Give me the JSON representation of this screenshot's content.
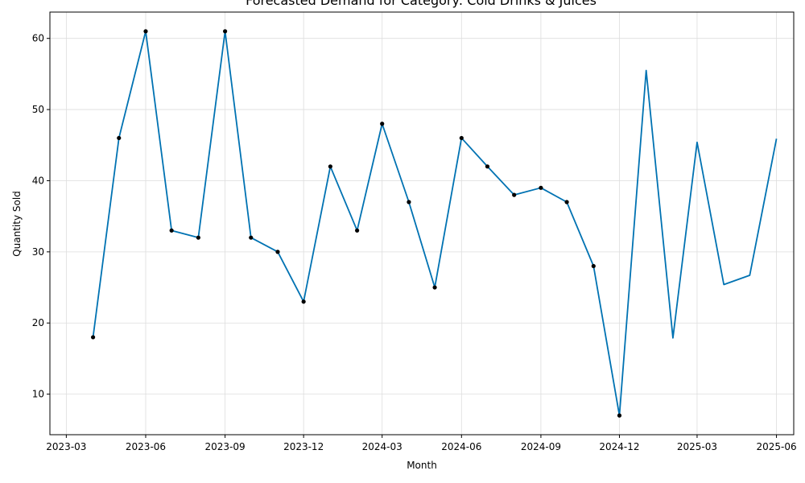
{
  "chart_data": {
    "type": "line",
    "title": "Forecasted Demand for Category: Cold Drinks & Juices",
    "xlabel": "Month",
    "ylabel": "Quantity Sold",
    "x_ticks": [
      "2023-03",
      "2023-06",
      "2023-09",
      "2023-12",
      "2024-03",
      "2024-06",
      "2024-09",
      "2024-12",
      "2025-03",
      "2025-06"
    ],
    "y_ticks": [
      10,
      20,
      30,
      40,
      50,
      60
    ],
    "ylim": [
      4.3,
      63.7
    ],
    "xlim": [
      "2023-02-10",
      "2025-06-21"
    ],
    "grid": true,
    "line_color": "#0072b2",
    "marker_color": "#000000",
    "series": [
      {
        "x": [
          "2023-04-01",
          "2023-05-01",
          "2023-06-01",
          "2023-07-01",
          "2023-08-01",
          "2023-09-01",
          "2023-10-01",
          "2023-11-01",
          "2023-12-01",
          "2024-01-01",
          "2024-02-01",
          "2024-03-01",
          "2024-04-01",
          "2024-05-01",
          "2024-06-01",
          "2024-07-01",
          "2024-08-01",
          "2024-09-01",
          "2024-10-01",
          "2024-11-01",
          "2024-12-01",
          "2025-01-01",
          "2025-02-01",
          "2025-03-01",
          "2025-04-01",
          "2025-05-01",
          "2025-06-01"
        ],
        "values": [
          18,
          46,
          61,
          33,
          32,
          61,
          32,
          30,
          23,
          42,
          33,
          48,
          37,
          25,
          46,
          42,
          38,
          39,
          37,
          28,
          7,
          55.5,
          17.9,
          45.4,
          25.4,
          26.7,
          45.9
        ],
        "markers": [
          true,
          true,
          true,
          true,
          true,
          true,
          true,
          true,
          true,
          true,
          true,
          true,
          true,
          true,
          true,
          true,
          true,
          true,
          true,
          true,
          true,
          false,
          false,
          false,
          false,
          false,
          false
        ]
      }
    ]
  }
}
